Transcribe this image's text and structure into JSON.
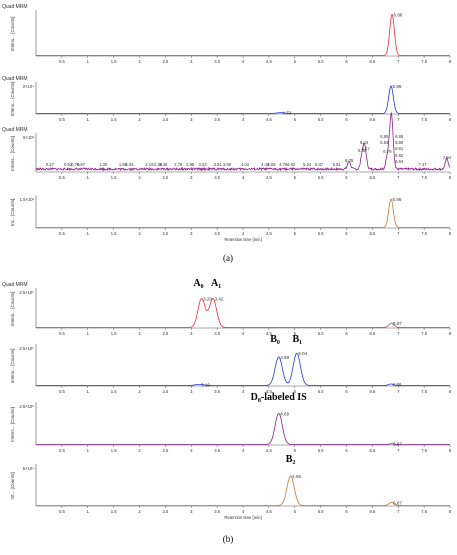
{
  "figure": {
    "panel_a_label": "(a)",
    "panel_b_label": "(b)",
    "header": "Quad MRM",
    "xlabel": "Retention time [min]",
    "ylabel_full": "Intens... [Counts]",
    "ylabel_short": "Int... [Counts]"
  },
  "colors": {
    "red": "#e8303a",
    "blue": "#2b35d6",
    "purple": "#8c1f8c",
    "brown": "#c07a2e",
    "axis": "#555555"
  },
  "chart_data": [
    {
      "type": "line",
      "panel": "a",
      "index": 0,
      "xlim": [
        0,
        8
      ],
      "color": "#e8303a",
      "header": "Quad MRM",
      "ylabel": "Intens... [Counts]",
      "y_tick": "",
      "show_xlabel": false,
      "peaks": [
        {
          "x": 6.88,
          "h": 0.98,
          "w": 0.045
        }
      ],
      "labels": [
        {
          "x": 6.88,
          "text": "6.88",
          "dy": 0
        }
      ],
      "compounds": []
    },
    {
      "type": "line",
      "panel": "a",
      "index": 1,
      "xlim": [
        0,
        8
      ],
      "color": "#2b35d6",
      "header": "Quad MRM",
      "ylabel": "Intens... [Counts]",
      "y_tick": "2×10⁴",
      "show_xlabel": false,
      "peaks": [
        {
          "x": 6.86,
          "h": 0.98,
          "w": 0.045
        },
        {
          "x": 4.73,
          "h": 0.03,
          "w": 0.08
        }
      ],
      "labels": [
        {
          "x": 6.86,
          "text": "6.86",
          "dy": 0
        },
        {
          "x": 4.73,
          "text": "4.73",
          "dy": 0
        }
      ],
      "compounds": []
    },
    {
      "type": "line",
      "panel": "a",
      "index": 2,
      "xlim": [
        0,
        8
      ],
      "color": "#8c1f8c",
      "header": "Quad MRM",
      "ylabel": "Intens... [Counts]",
      "y_tick": "8×10³",
      "show_xlabel": false,
      "noisy": true,
      "peaks": [
        {
          "x": 6.88,
          "h": 0.95,
          "w": 0.03
        },
        {
          "x": 6.85,
          "h": 0.85,
          "w": 0.03
        },
        {
          "x": 6.34,
          "h": 0.45,
          "w": 0.03
        },
        {
          "x": 6.79,
          "h": 0.35,
          "w": 0.03
        },
        {
          "x": 6.3,
          "h": 0.3,
          "w": 0.03
        },
        {
          "x": 7.94,
          "h": 0.3,
          "w": 0.03
        },
        {
          "x": 6.37,
          "h": 0.25,
          "w": 0.03
        },
        {
          "x": 6.05,
          "h": 0.22,
          "w": 0.03
        }
      ],
      "labels": [
        {
          "x": 0.27,
          "text": "0.27",
          "dy": 0
        },
        {
          "x": 0.62,
          "text": "0.62",
          "dy": 0
        },
        {
          "x": 0.76,
          "text": "0.76",
          "dy": 0
        },
        {
          "x": 0.87,
          "text": "0.87",
          "dy": 0
        },
        {
          "x": 1.3,
          "text": "1.30",
          "dy": 0
        },
        {
          "x": 1.68,
          "text": "1.68",
          "dy": 0
        },
        {
          "x": 1.81,
          "text": "1.81",
          "dy": 0
        },
        {
          "x": 2.19,
          "text": "2.19",
          "dy": 0
        },
        {
          "x": 2.36,
          "text": "2.36",
          "dy": 0
        },
        {
          "x": 2.46,
          "text": "2.46",
          "dy": 0
        },
        {
          "x": 2.75,
          "text": "2.75",
          "dy": 0
        },
        {
          "x": 2.98,
          "text": "2.98",
          "dy": 0
        },
        {
          "x": 3.22,
          "text": "3.22",
          "dy": 0
        },
        {
          "x": 3.51,
          "text": "3.51",
          "dy": 0
        },
        {
          "x": 3.69,
          "text": "3.69",
          "dy": 0
        },
        {
          "x": 4.04,
          "text": "4.04",
          "dy": 0
        },
        {
          "x": 4.43,
          "text": "4.43",
          "dy": 0
        },
        {
          "x": 4.55,
          "text": "4.55",
          "dy": 0
        },
        {
          "x": 4.78,
          "text": "4.78",
          "dy": 0
        },
        {
          "x": 4.93,
          "text": "4.93",
          "dy": 0
        },
        {
          "x": 5.24,
          "text": "5.24",
          "dy": 0
        },
        {
          "x": 5.47,
          "text": "5.47",
          "dy": 0
        },
        {
          "x": 5.81,
          "text": "5.81",
          "dy": 0
        },
        {
          "x": 6.05,
          "text": "6.05",
          "dy": 0
        },
        {
          "x": 6.3,
          "text": "6.30",
          "dy": 0
        },
        {
          "x": 6.34,
          "text": "6.34",
          "dy": 0
        },
        {
          "x": 6.37,
          "text": "6.37",
          "dy": 0
        },
        {
          "x": 6.79,
          "text": "6.79",
          "dy": 0
        },
        {
          "x": 6.84,
          "text": "6.84",
          "dy": 0
        },
        {
          "x": 6.85,
          "text": "6.85",
          "dy": 0
        },
        {
          "x": 6.88,
          "text": "6.88",
          "dy": 0
        },
        {
          "x": 6.89,
          "text": "6.89",
          "dy": 0
        },
        {
          "x": 6.91,
          "text": "6.91",
          "dy": 0
        },
        {
          "x": 6.92,
          "text": "6.92",
          "dy": 0
        },
        {
          "x": 6.94,
          "text": "6.94",
          "dy": 0
        },
        {
          "x": 7.47,
          "text": "7.47",
          "dy": 0
        },
        {
          "x": 7.94,
          "text": "7.94",
          "dy": 0
        }
      ],
      "compounds": []
    },
    {
      "type": "line",
      "panel": "a",
      "index": 3,
      "xlim": [
        0,
        8
      ],
      "color": "#c07a2e",
      "header": "",
      "ylabel": "Int... [Counts]",
      "y_tick": "1.5×10³",
      "show_xlabel": true,
      "peaks": [
        {
          "x": 6.86,
          "h": 0.98,
          "w": 0.045
        }
      ],
      "labels": [
        {
          "x": 6.86,
          "text": "6.86",
          "dy": 0
        }
      ],
      "compounds": []
    },
    {
      "type": "line",
      "panel": "b",
      "index": 0,
      "xlim": [
        0,
        8
      ],
      "color": "#e8303a",
      "header": "Quad MRM",
      "ylabel": "Intens... [Counts]",
      "y_tick": "2.5×10⁵",
      "show_xlabel": false,
      "peaks": [
        {
          "x": 3.2,
          "h": 0.8,
          "w": 0.07
        },
        {
          "x": 3.42,
          "h": 0.8,
          "w": 0.07
        },
        {
          "x": 6.87,
          "h": 0.12,
          "w": 0.05
        }
      ],
      "labels": [
        {
          "x": 3.2,
          "text": "3.20",
          "dy": 0
        },
        {
          "x": 3.42,
          "text": "3.42",
          "dy": 0
        },
        {
          "x": 6.87,
          "text": "6.87",
          "dy": 0
        }
      ],
      "compounds": [
        {
          "x": 3.14,
          "text": "A₀"
        },
        {
          "x": 3.48,
          "text": "A₁"
        }
      ]
    },
    {
      "type": "line",
      "panel": "b",
      "index": 1,
      "xlim": [
        0,
        8
      ],
      "color": "#2b35d6",
      "header": "",
      "ylabel": "Intens... [Counts]",
      "y_tick": "2.5×10⁵",
      "show_xlabel": false,
      "peaks": [
        {
          "x": 4.69,
          "h": 0.75,
          "w": 0.07
        },
        {
          "x": 5.04,
          "h": 0.85,
          "w": 0.07
        },
        {
          "x": 3.16,
          "h": 0.03,
          "w": 0.08
        },
        {
          "x": 6.86,
          "h": 0.04,
          "w": 0.05
        }
      ],
      "labels": [
        {
          "x": 4.69,
          "text": "4.69",
          "dy": 0
        },
        {
          "x": 5.04,
          "text": "5.04",
          "dy": 0
        },
        {
          "x": 3.16,
          "text": "3.16",
          "dy": 0
        },
        {
          "x": 6.86,
          "text": "6.86",
          "dy": 0
        }
      ],
      "compounds": [
        {
          "x": 4.62,
          "text": "B₀"
        },
        {
          "x": 5.05,
          "text": "B₁"
        }
      ]
    },
    {
      "type": "line",
      "panel": "b",
      "index": 2,
      "xlim": [
        0,
        8
      ],
      "color": "#8c1f8c",
      "header": "",
      "ylabel": "Intens... [Counts]",
      "y_tick": "2.5×10⁵",
      "show_xlabel": false,
      "peaks": [
        {
          "x": 4.69,
          "h": 0.8,
          "w": 0.07
        },
        {
          "x": 6.87,
          "h": 0.02,
          "w": 0.05
        }
      ],
      "labels": [
        {
          "x": 4.69,
          "text": "4.69",
          "dy": 0
        },
        {
          "x": 6.87,
          "text": "6.87",
          "dy": 0
        }
      ],
      "compounds": [
        {
          "x": 4.69,
          "text": "D₈-labeled IS"
        }
      ]
    },
    {
      "type": "line",
      "panel": "b",
      "index": 3,
      "xlim": [
        0,
        8
      ],
      "color": "#c07a2e",
      "header": "",
      "ylabel": "Int... [Counts]",
      "y_tick": "5×10⁴",
      "show_xlabel": true,
      "peaks": [
        {
          "x": 4.92,
          "h": 0.78,
          "w": 0.07
        },
        {
          "x": 6.87,
          "h": 0.08,
          "w": 0.05
        }
      ],
      "labels": [
        {
          "x": 4.92,
          "text": "4.92",
          "dy": 0
        },
        {
          "x": 6.87,
          "text": "6.87",
          "dy": 0
        }
      ],
      "compounds": [
        {
          "x": 4.92,
          "text": "B₂"
        }
      ]
    }
  ],
  "x_ticks": [
    "0.5",
    "1",
    "1.5",
    "2",
    "2.5",
    "3",
    "3.5",
    "4",
    "4.5",
    "5",
    "5.5",
    "6",
    "6.5",
    "7",
    "7.5",
    "8"
  ]
}
